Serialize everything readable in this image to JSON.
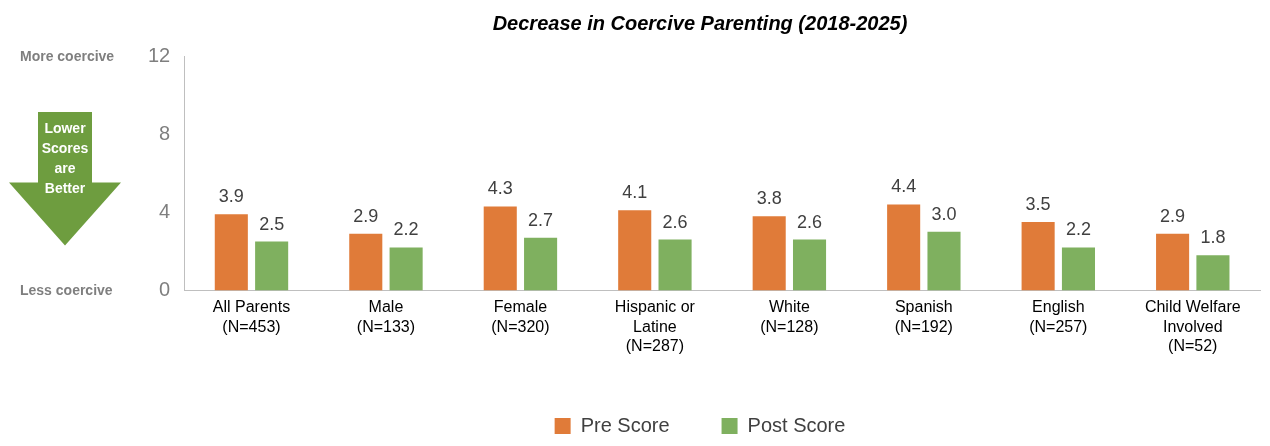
{
  "chart_data": {
    "type": "bar",
    "title": "Decrease in Coercive Parenting (2018-2025)",
    "categories": [
      "All Parents\n(N=453)",
      "Male\n(N=133)",
      "Female\n(N=320)",
      "Hispanic or\nLatine\n(N=287)",
      "White\n(N=128)",
      "Spanish\n(N=192)",
      "English\n(N=257)",
      "Child Welfare\nInvolved\n(N=52)"
    ],
    "series": [
      {
        "name": "Pre Score",
        "color": "#e07b39",
        "values": [
          3.9,
          2.9,
          4.3,
          4.1,
          3.8,
          4.4,
          3.5,
          2.9
        ],
        "value_labels": [
          "3.9",
          "2.9",
          "4.3",
          "4.1",
          "3.8",
          "4.4",
          "3.5",
          "2.9"
        ]
      },
      {
        "name": "Post Score",
        "color": "#7fb05f",
        "values": [
          2.5,
          2.2,
          2.7,
          2.6,
          2.6,
          3.0,
          2.2,
          1.8
        ],
        "value_labels": [
          "2.5",
          "2.2",
          "2.7",
          "2.6",
          "2.6",
          "3.0",
          "2.2",
          "1.8"
        ]
      }
    ],
    "ylim": [
      0,
      12
    ],
    "yticks": [
      0,
      4,
      8,
      12
    ],
    "grid": false,
    "legend": "bottom",
    "annotations": [
      "More coercive",
      "Less coercive",
      "Lower Scores are Better"
    ]
  }
}
